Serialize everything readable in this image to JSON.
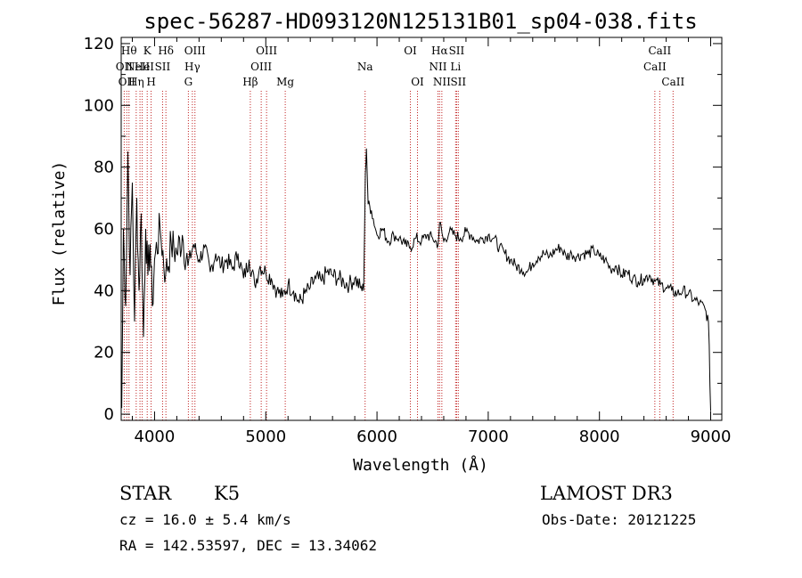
{
  "chart_data": {
    "type": "line",
    "title": "spec-56287-HD093120N125131B01_sp04-038.fits",
    "xlabel": "Wavelength (Å)",
    "ylabel": "Flux (relative)",
    "xlim": [
      3700,
      9100
    ],
    "ylim": [
      -2,
      122
    ],
    "xticks": [
      4000,
      5000,
      6000,
      7000,
      8000,
      9000
    ],
    "yticks": [
      0,
      20,
      40,
      60,
      80,
      100,
      120
    ],
    "series": [
      {
        "name": "spectrum",
        "color": "#000000",
        "x": [
          3705,
          3720,
          3740,
          3760,
          3780,
          3800,
          3820,
          3840,
          3860,
          3880,
          3900,
          3920,
          3940,
          3960,
          3980,
          4000,
          4050,
          4100,
          4150,
          4200,
          4250,
          4300,
          4350,
          4400,
          4450,
          4500,
          4550,
          4600,
          4650,
          4700,
          4750,
          4800,
          4850,
          4900,
          4950,
          5000,
          5050,
          5100,
          5150,
          5200,
          5250,
          5300,
          5350,
          5400,
          5450,
          5500,
          5550,
          5600,
          5650,
          5700,
          5750,
          5800,
          5850,
          5880,
          5895,
          5905,
          5920,
          5950,
          6000,
          6050,
          6100,
          6150,
          6200,
          6250,
          6300,
          6350,
          6400,
          6450,
          6500,
          6550,
          6563,
          6600,
          6650,
          6700,
          6750,
          6800,
          6850,
          6900,
          6950,
          7000,
          7050,
          7100,
          7150,
          7200,
          7250,
          7300,
          7350,
          7400,
          7450,
          7500,
          7550,
          7600,
          7650,
          7700,
          7750,
          7800,
          7850,
          7900,
          7950,
          8000,
          8050,
          8100,
          8150,
          8200,
          8250,
          8300,
          8350,
          8400,
          8450,
          8500,
          8550,
          8600,
          8650,
          8700,
          8750,
          8800,
          8850,
          8900,
          8950,
          8980,
          9000
        ],
        "y": [
          2,
          60,
          35,
          85,
          45,
          75,
          30,
          70,
          40,
          65,
          25,
          60,
          45,
          55,
          35,
          50,
          60,
          45,
          55,
          52,
          58,
          48,
          55,
          50,
          54,
          46,
          52,
          48,
          50,
          47,
          52,
          44,
          50,
          42,
          48,
          46,
          44,
          40,
          38,
          42,
          40,
          36,
          39,
          41,
          44,
          43,
          46,
          45,
          44,
          43,
          42,
          44,
          41,
          40,
          78,
          86,
          68,
          66,
          58,
          60,
          56,
          58,
          57,
          55,
          54,
          57,
          56,
          58,
          57,
          55,
          62,
          56,
          59,
          58,
          57,
          59,
          58,
          56,
          57,
          58,
          57,
          54,
          52,
          50,
          48,
          47,
          46,
          49,
          51,
          52,
          51,
          53,
          54,
          51,
          52,
          51,
          52,
          52,
          53,
          51,
          50,
          47,
          48,
          45,
          46,
          44,
          43,
          44,
          45,
          43,
          42,
          41,
          40,
          39,
          40,
          39,
          37,
          36,
          34,
          30,
          1
        ]
      }
    ],
    "lines": [
      {
        "x": 3727,
        "row": 1,
        "label": "OII"
      },
      {
        "x": 3750,
        "row": 2,
        "label": "OII"
      },
      {
        "x": 3770,
        "row": 0,
        "label": "Hθ"
      },
      {
        "x": 3835,
        "row": 2,
        "label": "Hη"
      },
      {
        "x": 3869,
        "row": 1,
        "label": "NeIII"
      },
      {
        "x": 3889,
        "row": 1,
        "label": "He"
      },
      {
        "x": 3934,
        "row": 0,
        "label": "K"
      },
      {
        "x": 3969,
        "row": 2,
        "label": "H"
      },
      {
        "x": 4072,
        "row": 1,
        "label": "SII"
      },
      {
        "x": 4102,
        "row": 0,
        "label": "Hδ"
      },
      {
        "x": 4304,
        "row": 2,
        "label": "G"
      },
      {
        "x": 4340,
        "row": 1,
        "label": "Hγ"
      },
      {
        "x": 4363,
        "row": 0,
        "label": "OIII"
      },
      {
        "x": 4861,
        "row": 2,
        "label": "Hβ"
      },
      {
        "x": 4959,
        "row": 1,
        "label": "OIII"
      },
      {
        "x": 5007,
        "row": 0,
        "label": "OIII"
      },
      {
        "x": 5175,
        "row": 2,
        "label": "Mg"
      },
      {
        "x": 5893,
        "row": 1,
        "label": "Na"
      },
      {
        "x": 6300,
        "row": 0,
        "label": "OI"
      },
      {
        "x": 6364,
        "row": 2,
        "label": "OI"
      },
      {
        "x": 6548,
        "row": 1,
        "label": "NII"
      },
      {
        "x": 6563,
        "row": 0,
        "label": "Hα"
      },
      {
        "x": 6583,
        "row": 2,
        "label": "NII"
      },
      {
        "x": 6707,
        "row": 1,
        "label": "Li"
      },
      {
        "x": 6716,
        "row": 0,
        "label": "SII"
      },
      {
        "x": 6731,
        "row": 2,
        "label": "SII"
      },
      {
        "x": 8498,
        "row": 1,
        "label": "CaII"
      },
      {
        "x": 8542,
        "row": 0,
        "label": "CaII"
      },
      {
        "x": 8662,
        "row": 2,
        "label": "CaII"
      }
    ]
  },
  "footer": {
    "class_label": "STAR",
    "subclass": "K5",
    "survey": "LAMOST DR3",
    "cz_line": "cz = 16.0 ± 5.4 km/s",
    "obs_date": "Obs-Date: 20121225",
    "coords": "RA = 142.53597, DEC =  13.34062"
  }
}
